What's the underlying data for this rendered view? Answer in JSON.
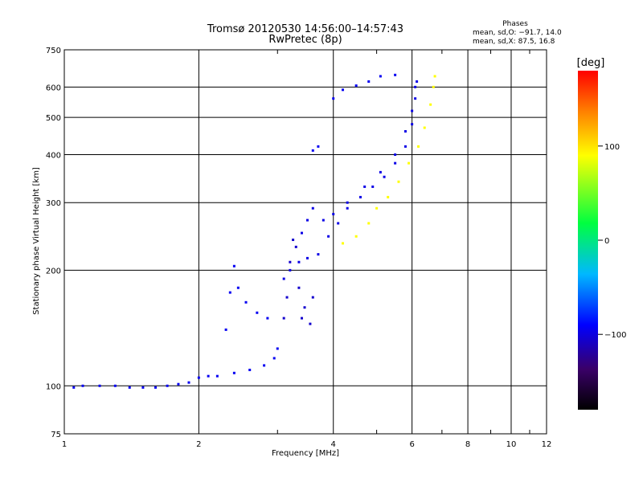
{
  "chart_data": {
    "type": "scatter",
    "title": "Tromsø 20120530 14:56:00–14:57:43",
    "subtitle": "RwPretec (8p)",
    "phases": {
      "heading": "Phases",
      "line1": "mean, sd,O: −91.7, 14.0",
      "line2": "mean, sd,X:  87.5, 16.8"
    },
    "xlabel": "Frequency [MHz]",
    "ylabel": "Stationary phase Virtual Height [km]",
    "x_scale": "log",
    "y_scale": "log",
    "xlim": [
      1,
      12
    ],
    "ylim": [
      75,
      750
    ],
    "x_ticks": [
      1,
      2,
      4,
      6,
      8,
      10,
      12
    ],
    "x_tick_labels": [
      "1",
      "2",
      "4",
      "6",
      "8",
      "10",
      "12"
    ],
    "y_ticks": [
      75,
      100,
      200,
      300,
      400,
      500,
      600,
      750
    ],
    "y_tick_labels": [
      "75",
      "100",
      "200",
      "300",
      "400",
      "500",
      "600",
      "750"
    ],
    "grid": true,
    "colorbar": {
      "label": "[deg]",
      "range": [
        -180,
        180
      ],
      "ticks": [
        100,
        0,
        -100
      ],
      "tick_labels": [
        "100",
        "0",
        "−100"
      ]
    },
    "series": [
      {
        "id": "E-layer",
        "phase": -95,
        "points": [
          [
            1.05,
            99
          ],
          [
            1.1,
            100
          ],
          [
            1.2,
            100
          ],
          [
            1.3,
            100
          ],
          [
            1.4,
            99
          ],
          [
            1.5,
            99
          ],
          [
            1.6,
            99
          ],
          [
            1.7,
            100
          ],
          [
            1.8,
            101
          ],
          [
            1.9,
            102
          ],
          [
            2.0,
            105
          ],
          [
            2.1,
            106
          ],
          [
            2.2,
            106
          ],
          [
            2.4,
            108
          ],
          [
            2.6,
            110
          ],
          [
            2.8,
            113
          ],
          [
            2.95,
            118
          ],
          [
            3.0,
            125
          ]
        ]
      },
      {
        "id": "Es-branch",
        "phase": -95,
        "points": [
          [
            2.3,
            140
          ],
          [
            2.35,
            175
          ],
          [
            2.4,
            205
          ],
          [
            2.45,
            180
          ],
          [
            2.55,
            165
          ],
          [
            2.7,
            155
          ],
          [
            2.85,
            150
          ]
        ]
      },
      {
        "id": "F1-O-lower",
        "phase": -100,
        "points": [
          [
            3.1,
            190
          ],
          [
            3.2,
            200
          ],
          [
            3.35,
            210
          ],
          [
            3.5,
            215
          ],
          [
            3.7,
            220
          ],
          [
            3.9,
            245
          ],
          [
            4.1,
            265
          ],
          [
            4.3,
            290
          ],
          [
            4.6,
            310
          ],
          [
            4.9,
            330
          ],
          [
            5.2,
            350
          ],
          [
            5.5,
            380
          ],
          [
            5.8,
            420
          ],
          [
            6.0,
            480
          ],
          [
            6.1,
            560
          ],
          [
            6.15,
            620
          ]
        ]
      },
      {
        "id": "F1-O-upper",
        "phase": -100,
        "points": [
          [
            3.4,
            250
          ],
          [
            3.5,
            270
          ],
          [
            3.6,
            290
          ],
          [
            3.8,
            270
          ],
          [
            4.0,
            280
          ],
          [
            4.3,
            300
          ],
          [
            4.7,
            330
          ],
          [
            5.1,
            360
          ],
          [
            5.5,
            400
          ],
          [
            5.8,
            460
          ],
          [
            6.0,
            520
          ],
          [
            6.1,
            600
          ]
        ]
      },
      {
        "id": "F-cusp",
        "phase": -110,
        "points": [
          [
            3.1,
            150
          ],
          [
            3.15,
            170
          ],
          [
            3.2,
            210
          ],
          [
            3.25,
            240
          ],
          [
            3.3,
            230
          ],
          [
            3.35,
            180
          ],
          [
            3.4,
            150
          ],
          [
            3.45,
            160
          ],
          [
            3.55,
            145
          ],
          [
            3.6,
            170
          ]
        ]
      },
      {
        "id": "F2-O",
        "phase": -95,
        "points": [
          [
            3.6,
            410
          ],
          [
            3.7,
            420
          ],
          [
            4.0,
            560
          ],
          [
            4.2,
            590
          ],
          [
            4.5,
            605
          ],
          [
            4.8,
            620
          ],
          [
            5.1,
            640
          ],
          [
            5.5,
            645
          ]
        ]
      },
      {
        "id": "X-mode",
        "phase": 90,
        "points": [
          [
            4.2,
            235
          ],
          [
            4.5,
            245
          ],
          [
            4.8,
            265
          ],
          [
            5.0,
            290
          ],
          [
            5.3,
            310
          ],
          [
            5.6,
            340
          ],
          [
            5.9,
            380
          ],
          [
            6.2,
            420
          ],
          [
            6.4,
            470
          ],
          [
            6.6,
            540
          ],
          [
            6.7,
            600
          ],
          [
            6.75,
            640
          ]
        ]
      }
    ]
  }
}
